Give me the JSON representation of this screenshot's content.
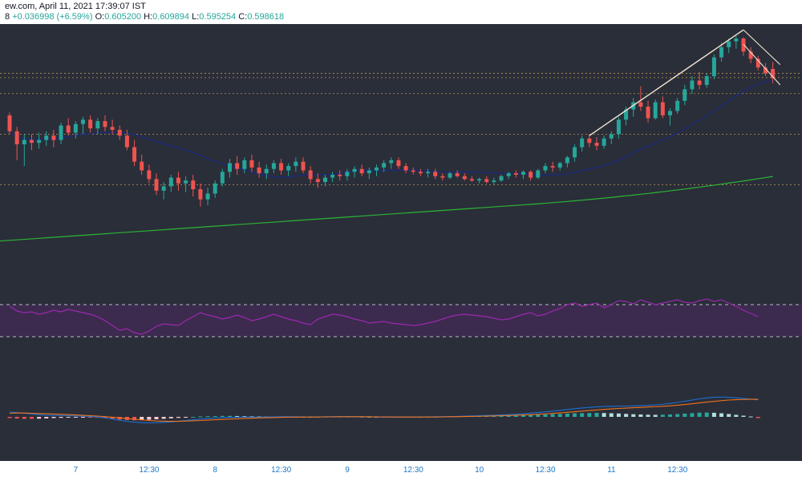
{
  "header": {
    "source": "ew.com, April 11, 2021 17:39:07 IST",
    "symbol_tail": "8",
    "change": "+0.036998 (+6.59%)",
    "open_label": "O:",
    "open": "0.605200",
    "high_label": "H:",
    "high": "0.609894",
    "low_label": "L:",
    "low": "0.595254",
    "close_label": "C:",
    "close": "0.598618"
  },
  "colors": {
    "background": "#2a2e39",
    "up": "#26a69a",
    "down": "#ef5350",
    "sma_short": "#1c2a78",
    "sma_long": "#2bb534",
    "rsi": "#9c27b0",
    "rsi_band": "#3f2a52",
    "macd_line": "#1e6fd1",
    "signal_line": "#f2731d",
    "level_line": "#d0a057",
    "trendline": "#f3e6d2"
  },
  "chart_data": [
    {
      "type": "candlestick",
      "price_range_approx": [
        0.45,
        0.62
      ],
      "horizontal_levels_approx": [
        0.602,
        0.599,
        0.588,
        0.56,
        0.525
      ],
      "trendlines": "rising line from late Apr 10 to Apr 11 high; short descending channel after peak",
      "moving_averages": [
        "short (dark blue)",
        "long (green)"
      ],
      "candles": [
        {
          "o": 0.573,
          "h": 0.575,
          "l": 0.56,
          "c": 0.562
        },
        {
          "o": 0.562,
          "h": 0.565,
          "l": 0.542,
          "c": 0.553
        },
        {
          "o": 0.553,
          "h": 0.56,
          "l": 0.538,
          "c": 0.556
        },
        {
          "o": 0.556,
          "h": 0.56,
          "l": 0.549,
          "c": 0.554
        },
        {
          "o": 0.554,
          "h": 0.561,
          "l": 0.55,
          "c": 0.556
        },
        {
          "o": 0.556,
          "h": 0.562,
          "l": 0.552,
          "c": 0.559
        },
        {
          "o": 0.559,
          "h": 0.563,
          "l": 0.551,
          "c": 0.556
        },
        {
          "o": 0.556,
          "h": 0.568,
          "l": 0.553,
          "c": 0.566
        },
        {
          "o": 0.566,
          "h": 0.571,
          "l": 0.559,
          "c": 0.561
        },
        {
          "o": 0.561,
          "h": 0.569,
          "l": 0.557,
          "c": 0.567
        },
        {
          "o": 0.567,
          "h": 0.572,
          "l": 0.56,
          "c": 0.57
        },
        {
          "o": 0.57,
          "h": 0.573,
          "l": 0.561,
          "c": 0.564
        },
        {
          "o": 0.564,
          "h": 0.571,
          "l": 0.56,
          "c": 0.569
        },
        {
          "o": 0.569,
          "h": 0.573,
          "l": 0.562,
          "c": 0.565
        },
        {
          "o": 0.565,
          "h": 0.57,
          "l": 0.56,
          "c": 0.563
        },
        {
          "o": 0.563,
          "h": 0.566,
          "l": 0.556,
          "c": 0.559
        },
        {
          "o": 0.559,
          "h": 0.563,
          "l": 0.549,
          "c": 0.551
        },
        {
          "o": 0.551,
          "h": 0.556,
          "l": 0.538,
          "c": 0.541
        },
        {
          "o": 0.541,
          "h": 0.546,
          "l": 0.532,
          "c": 0.535
        },
        {
          "o": 0.535,
          "h": 0.539,
          "l": 0.526,
          "c": 0.529
        },
        {
          "o": 0.529,
          "h": 0.533,
          "l": 0.518,
          "c": 0.521
        },
        {
          "o": 0.521,
          "h": 0.527,
          "l": 0.515,
          "c": 0.524
        },
        {
          "o": 0.524,
          "h": 0.532,
          "l": 0.52,
          "c": 0.53
        },
        {
          "o": 0.53,
          "h": 0.534,
          "l": 0.521,
          "c": 0.526
        },
        {
          "o": 0.526,
          "h": 0.531,
          "l": 0.52,
          "c": 0.528
        },
        {
          "o": 0.528,
          "h": 0.532,
          "l": 0.517,
          "c": 0.522
        },
        {
          "o": 0.522,
          "h": 0.526,
          "l": 0.51,
          "c": 0.515
        },
        {
          "o": 0.515,
          "h": 0.523,
          "l": 0.511,
          "c": 0.519
        },
        {
          "o": 0.519,
          "h": 0.528,
          "l": 0.516,
          "c": 0.526
        },
        {
          "o": 0.526,
          "h": 0.536,
          "l": 0.524,
          "c": 0.534
        },
        {
          "o": 0.534,
          "h": 0.543,
          "l": 0.53,
          "c": 0.54
        },
        {
          "o": 0.54,
          "h": 0.545,
          "l": 0.532,
          "c": 0.536
        },
        {
          "o": 0.536,
          "h": 0.544,
          "l": 0.533,
          "c": 0.542
        },
        {
          "o": 0.542,
          "h": 0.546,
          "l": 0.534,
          "c": 0.537
        },
        {
          "o": 0.537,
          "h": 0.541,
          "l": 0.53,
          "c": 0.533
        },
        {
          "o": 0.533,
          "h": 0.539,
          "l": 0.529,
          "c": 0.536
        },
        {
          "o": 0.536,
          "h": 0.542,
          "l": 0.533,
          "c": 0.54
        },
        {
          "o": 0.54,
          "h": 0.543,
          "l": 0.532,
          "c": 0.535
        },
        {
          "o": 0.535,
          "h": 0.54,
          "l": 0.531,
          "c": 0.538
        },
        {
          "o": 0.538,
          "h": 0.544,
          "l": 0.534,
          "c": 0.541
        },
        {
          "o": 0.541,
          "h": 0.544,
          "l": 0.533,
          "c": 0.535
        },
        {
          "o": 0.535,
          "h": 0.538,
          "l": 0.526,
          "c": 0.529
        },
        {
          "o": 0.529,
          "h": 0.533,
          "l": 0.523,
          "c": 0.527
        },
        {
          "o": 0.527,
          "h": 0.532,
          "l": 0.524,
          "c": 0.53
        },
        {
          "o": 0.53,
          "h": 0.534,
          "l": 0.527,
          "c": 0.532
        },
        {
          "o": 0.532,
          "h": 0.535,
          "l": 0.528,
          "c": 0.531
        },
        {
          "o": 0.531,
          "h": 0.536,
          "l": 0.528,
          "c": 0.534
        },
        {
          "o": 0.534,
          "h": 0.538,
          "l": 0.53,
          "c": 0.536
        },
        {
          "o": 0.536,
          "h": 0.539,
          "l": 0.531,
          "c": 0.533
        },
        {
          "o": 0.533,
          "h": 0.537,
          "l": 0.529,
          "c": 0.535
        },
        {
          "o": 0.535,
          "h": 0.539,
          "l": 0.531,
          "c": 0.537
        },
        {
          "o": 0.537,
          "h": 0.542,
          "l": 0.534,
          "c": 0.54
        },
        {
          "o": 0.54,
          "h": 0.544,
          "l": 0.536,
          "c": 0.542
        },
        {
          "o": 0.542,
          "h": 0.544,
          "l": 0.536,
          "c": 0.538
        },
        {
          "o": 0.538,
          "h": 0.54,
          "l": 0.533,
          "c": 0.535
        },
        {
          "o": 0.535,
          "h": 0.537,
          "l": 0.532,
          "c": 0.534
        },
        {
          "o": 0.534,
          "h": 0.536,
          "l": 0.531,
          "c": 0.533
        },
        {
          "o": 0.533,
          "h": 0.536,
          "l": 0.53,
          "c": 0.534
        },
        {
          "o": 0.534,
          "h": 0.536,
          "l": 0.529,
          "c": 0.531
        },
        {
          "o": 0.531,
          "h": 0.533,
          "l": 0.528,
          "c": 0.53
        },
        {
          "o": 0.53,
          "h": 0.534,
          "l": 0.529,
          "c": 0.533
        },
        {
          "o": 0.533,
          "h": 0.535,
          "l": 0.53,
          "c": 0.531
        },
        {
          "o": 0.531,
          "h": 0.533,
          "l": 0.528,
          "c": 0.529
        },
        {
          "o": 0.529,
          "h": 0.531,
          "l": 0.527,
          "c": 0.528
        },
        {
          "o": 0.528,
          "h": 0.53,
          "l": 0.526,
          "c": 0.529
        },
        {
          "o": 0.529,
          "h": 0.531,
          "l": 0.526,
          "c": 0.527
        },
        {
          "o": 0.527,
          "h": 0.53,
          "l": 0.525,
          "c": 0.528
        },
        {
          "o": 0.528,
          "h": 0.532,
          "l": 0.527,
          "c": 0.531
        },
        {
          "o": 0.531,
          "h": 0.534,
          "l": 0.529,
          "c": 0.533
        },
        {
          "o": 0.533,
          "h": 0.535,
          "l": 0.53,
          "c": 0.532
        },
        {
          "o": 0.532,
          "h": 0.535,
          "l": 0.529,
          "c": 0.534
        },
        {
          "o": 0.534,
          "h": 0.535,
          "l": 0.528,
          "c": 0.53
        },
        {
          "o": 0.53,
          "h": 0.536,
          "l": 0.529,
          "c": 0.535
        },
        {
          "o": 0.535,
          "h": 0.54,
          "l": 0.533,
          "c": 0.538
        },
        {
          "o": 0.538,
          "h": 0.541,
          "l": 0.534,
          "c": 0.537
        },
        {
          "o": 0.537,
          "h": 0.541,
          "l": 0.535,
          "c": 0.54
        },
        {
          "o": 0.54,
          "h": 0.545,
          "l": 0.537,
          "c": 0.544
        },
        {
          "o": 0.544,
          "h": 0.553,
          "l": 0.541,
          "c": 0.551
        },
        {
          "o": 0.551,
          "h": 0.559,
          "l": 0.548,
          "c": 0.557
        },
        {
          "o": 0.557,
          "h": 0.56,
          "l": 0.551,
          "c": 0.554
        },
        {
          "o": 0.554,
          "h": 0.558,
          "l": 0.549,
          "c": 0.552
        },
        {
          "o": 0.552,
          "h": 0.559,
          "l": 0.55,
          "c": 0.557
        },
        {
          "o": 0.557,
          "h": 0.562,
          "l": 0.553,
          "c": 0.56
        },
        {
          "o": 0.56,
          "h": 0.572,
          "l": 0.557,
          "c": 0.57
        },
        {
          "o": 0.57,
          "h": 0.579,
          "l": 0.566,
          "c": 0.577
        },
        {
          "o": 0.577,
          "h": 0.585,
          "l": 0.572,
          "c": 0.582
        },
        {
          "o": 0.582,
          "h": 0.593,
          "l": 0.576,
          "c": 0.579
        },
        {
          "o": 0.579,
          "h": 0.583,
          "l": 0.568,
          "c": 0.571
        },
        {
          "o": 0.571,
          "h": 0.584,
          "l": 0.57,
          "c": 0.582
        },
        {
          "o": 0.582,
          "h": 0.586,
          "l": 0.571,
          "c": 0.573
        },
        {
          "o": 0.573,
          "h": 0.578,
          "l": 0.566,
          "c": 0.576
        },
        {
          "o": 0.576,
          "h": 0.585,
          "l": 0.574,
          "c": 0.583
        },
        {
          "o": 0.583,
          "h": 0.594,
          "l": 0.58,
          "c": 0.591
        },
        {
          "o": 0.591,
          "h": 0.6,
          "l": 0.588,
          "c": 0.597
        },
        {
          "o": 0.597,
          "h": 0.603,
          "l": 0.591,
          "c": 0.594
        },
        {
          "o": 0.594,
          "h": 0.602,
          "l": 0.592,
          "c": 0.6
        },
        {
          "o": 0.6,
          "h": 0.615,
          "l": 0.598,
          "c": 0.613
        },
        {
          "o": 0.613,
          "h": 0.623,
          "l": 0.61,
          "c": 0.62
        },
        {
          "o": 0.62,
          "h": 0.626,
          "l": 0.616,
          "c": 0.624
        },
        {
          "o": 0.624,
          "h": 0.628,
          "l": 0.619,
          "c": 0.626
        },
        {
          "o": 0.626,
          "h": 0.627,
          "l": 0.614,
          "c": 0.617
        },
        {
          "o": 0.617,
          "h": 0.62,
          "l": 0.609,
          "c": 0.612
        },
        {
          "o": 0.612,
          "h": 0.614,
          "l": 0.604,
          "c": 0.606
        },
        {
          "o": 0.606,
          "h": 0.609,
          "l": 0.6,
          "c": 0.602
        },
        {
          "o": 0.605,
          "h": 0.609894,
          "l": 0.595254,
          "c": 0.598618
        }
      ]
    },
    {
      "type": "line",
      "name": "RSI",
      "bands": [
        70,
        30
      ],
      "ylim": [
        0,
        100
      ],
      "values": [
        68,
        62,
        60,
        61,
        58,
        60,
        63,
        61,
        64,
        62,
        60,
        58,
        55,
        50,
        44,
        38,
        40,
        35,
        33,
        37,
        43,
        46,
        45,
        44,
        50,
        55,
        60,
        57,
        55,
        52,
        54,
        57,
        54,
        50,
        52,
        55,
        58,
        55,
        52,
        50,
        47,
        45,
        52,
        55,
        58,
        57,
        55,
        52,
        50,
        47,
        48,
        49,
        47,
        46,
        45,
        44,
        45,
        47,
        49,
        52,
        55,
        57,
        58,
        57,
        56,
        55,
        53,
        51,
        52,
        55,
        58,
        60,
        56,
        58,
        62,
        65,
        70,
        72,
        68,
        70,
        72,
        66,
        70,
        75,
        74,
        71,
        76,
        73,
        70,
        72,
        74,
        76,
        73,
        72,
        75,
        77,
        74,
        76,
        72,
        68,
        63,
        59,
        55
      ]
    },
    {
      "type": "bar+line",
      "name": "MACD",
      "histogram": [
        -0.001,
        -0.0014,
        -0.0016,
        -0.0016,
        -0.0015,
        -0.0013,
        -0.001,
        -0.0008,
        -0.0006,
        -0.0005,
        -0.0004,
        -0.0004,
        -0.0006,
        -0.001,
        -0.0016,
        -0.0022,
        -0.0026,
        -0.0028,
        -0.0027,
        -0.0024,
        -0.002,
        -0.0016,
        -0.0012,
        -0.0008,
        -0.0004,
        0.0,
        0.0004,
        0.0006,
        0.0007,
        0.0008,
        0.0008,
        0.0007,
        0.0006,
        0.0005,
        0.0004,
        0.0003,
        0.0003,
        0.0003,
        0.0003,
        0.0002,
        0.0001,
        0.0,
        0.0001,
        0.0002,
        0.0003,
        0.0003,
        0.0003,
        0.0003,
        0.0002,
        0.0001,
        0.0,
        -0.0001,
        -0.0001,
        -0.0001,
        -0.0001,
        -0.0001,
        0.0,
        0.0001,
        0.0002,
        0.0003,
        0.0004,
        0.0005,
        0.0006,
        0.0007,
        0.0008,
        0.0009,
        0.001,
        0.001,
        0.0011,
        0.0012,
        0.0014,
        0.0016,
        0.0018,
        0.002,
        0.0022,
        0.0024,
        0.0027,
        0.003,
        0.0031,
        0.0032,
        0.0033,
        0.0032,
        0.003,
        0.0028,
        0.0025,
        0.0022,
        0.002,
        0.0018,
        0.0017,
        0.0018,
        0.002,
        0.0023,
        0.0027,
        0.0031,
        0.0035,
        0.0036,
        0.0034,
        0.003,
        0.0024,
        0.0017,
        0.001,
        0.0003,
        -0.001
      ],
      "macd": [
        0.004,
        0.0036,
        0.003,
        0.0024,
        0.0018,
        0.0014,
        0.0012,
        0.0011,
        0.001,
        0.0008,
        0.0006,
        0.0003,
        -0.0002,
        -0.0009,
        -0.0018,
        -0.0028,
        -0.0037,
        -0.0044,
        -0.0048,
        -0.005,
        -0.0049,
        -0.0046,
        -0.0042,
        -0.0036,
        -0.003,
        -0.0024,
        -0.0018,
        -0.0013,
        -0.0009,
        -0.0006,
        -0.0004,
        -0.0003,
        -0.0002,
        -0.0002,
        -0.0002,
        -0.0001,
        0.0,
        0.0001,
        0.0001,
        0.0001,
        0.0,
        -0.0001,
        0.0,
        0.0001,
        0.0002,
        0.0003,
        0.0003,
        0.0002,
        0.0001,
        0.0,
        -0.0001,
        -0.0002,
        -0.0002,
        -0.0002,
        -0.0002,
        -0.0002,
        -0.0001,
        0.0,
        0.0001,
        0.0002,
        0.0003,
        0.0004,
        0.0006,
        0.0008,
        0.001,
        0.0012,
        0.0014,
        0.0016,
        0.0019,
        0.0022,
        0.0026,
        0.0031,
        0.0036,
        0.0042,
        0.0048,
        0.0054,
        0.0061,
        0.0068,
        0.0074,
        0.0079,
        0.0083,
        0.0086,
        0.0088,
        0.0089,
        0.009,
        0.0091,
        0.0093,
        0.0096,
        0.01,
        0.0105,
        0.0112,
        0.012,
        0.013,
        0.014,
        0.015,
        0.0158,
        0.0163,
        0.0165,
        0.0163,
        0.0159,
        0.0153,
        0.0147,
        0.0141
      ],
      "signal": [
        0.003,
        0.0032,
        0.0032,
        0.003,
        0.0028,
        0.0026,
        0.0024,
        0.0021,
        0.0019,
        0.0016,
        0.0013,
        0.001,
        0.0006,
        0.0002,
        -0.0003,
        -0.0008,
        -0.0014,
        -0.002,
        -0.0025,
        -0.003,
        -0.0034,
        -0.0036,
        -0.0037,
        -0.0037,
        -0.0035,
        -0.0033,
        -0.003,
        -0.0027,
        -0.0024,
        -0.0021,
        -0.0018,
        -0.0016,
        -0.0013,
        -0.0011,
        -0.0009,
        -0.0007,
        -0.0006,
        -0.0004,
        -0.0003,
        -0.0002,
        -0.0002,
        -0.0001,
        -0.0001,
        0.0,
        0.0,
        0.0001,
        0.0001,
        0.0001,
        0.0001,
        0.0001,
        0.0,
        0.0,
        -0.0001,
        -0.0001,
        -0.0001,
        -0.0001,
        -0.0001,
        -0.0001,
        -0.0001,
        0.0,
        0.0001,
        0.0002,
        0.0003,
        0.0004,
        0.0005,
        0.0006,
        0.0008,
        0.001,
        0.0011,
        0.0013,
        0.0016,
        0.0018,
        0.0021,
        0.0025,
        0.0029,
        0.0033,
        0.0038,
        0.0043,
        0.0048,
        0.0053,
        0.0057,
        0.0062,
        0.0066,
        0.007,
        0.0073,
        0.0076,
        0.0079,
        0.0082,
        0.0085,
        0.0088,
        0.0092,
        0.0097,
        0.0103,
        0.0109,
        0.0116,
        0.0123,
        0.0129,
        0.0135,
        0.014,
        0.0143,
        0.0145,
        0.0146,
        0.0146
      ]
    }
  ],
  "time_axis": {
    "ticks": [
      {
        "label": "7",
        "index": 3
      },
      {
        "label": "12:30",
        "index": 13
      },
      {
        "label": "8",
        "index": 22
      },
      {
        "label": "12:30",
        "index": 31
      },
      {
        "label": "9",
        "index": 40
      },
      {
        "label": "12:30",
        "index": 49
      },
      {
        "label": "10",
        "index": 58
      },
      {
        "label": "12:30",
        "index": 67
      },
      {
        "label": "11",
        "index": 76
      },
      {
        "label": "12:30",
        "index": 85
      }
    ]
  }
}
